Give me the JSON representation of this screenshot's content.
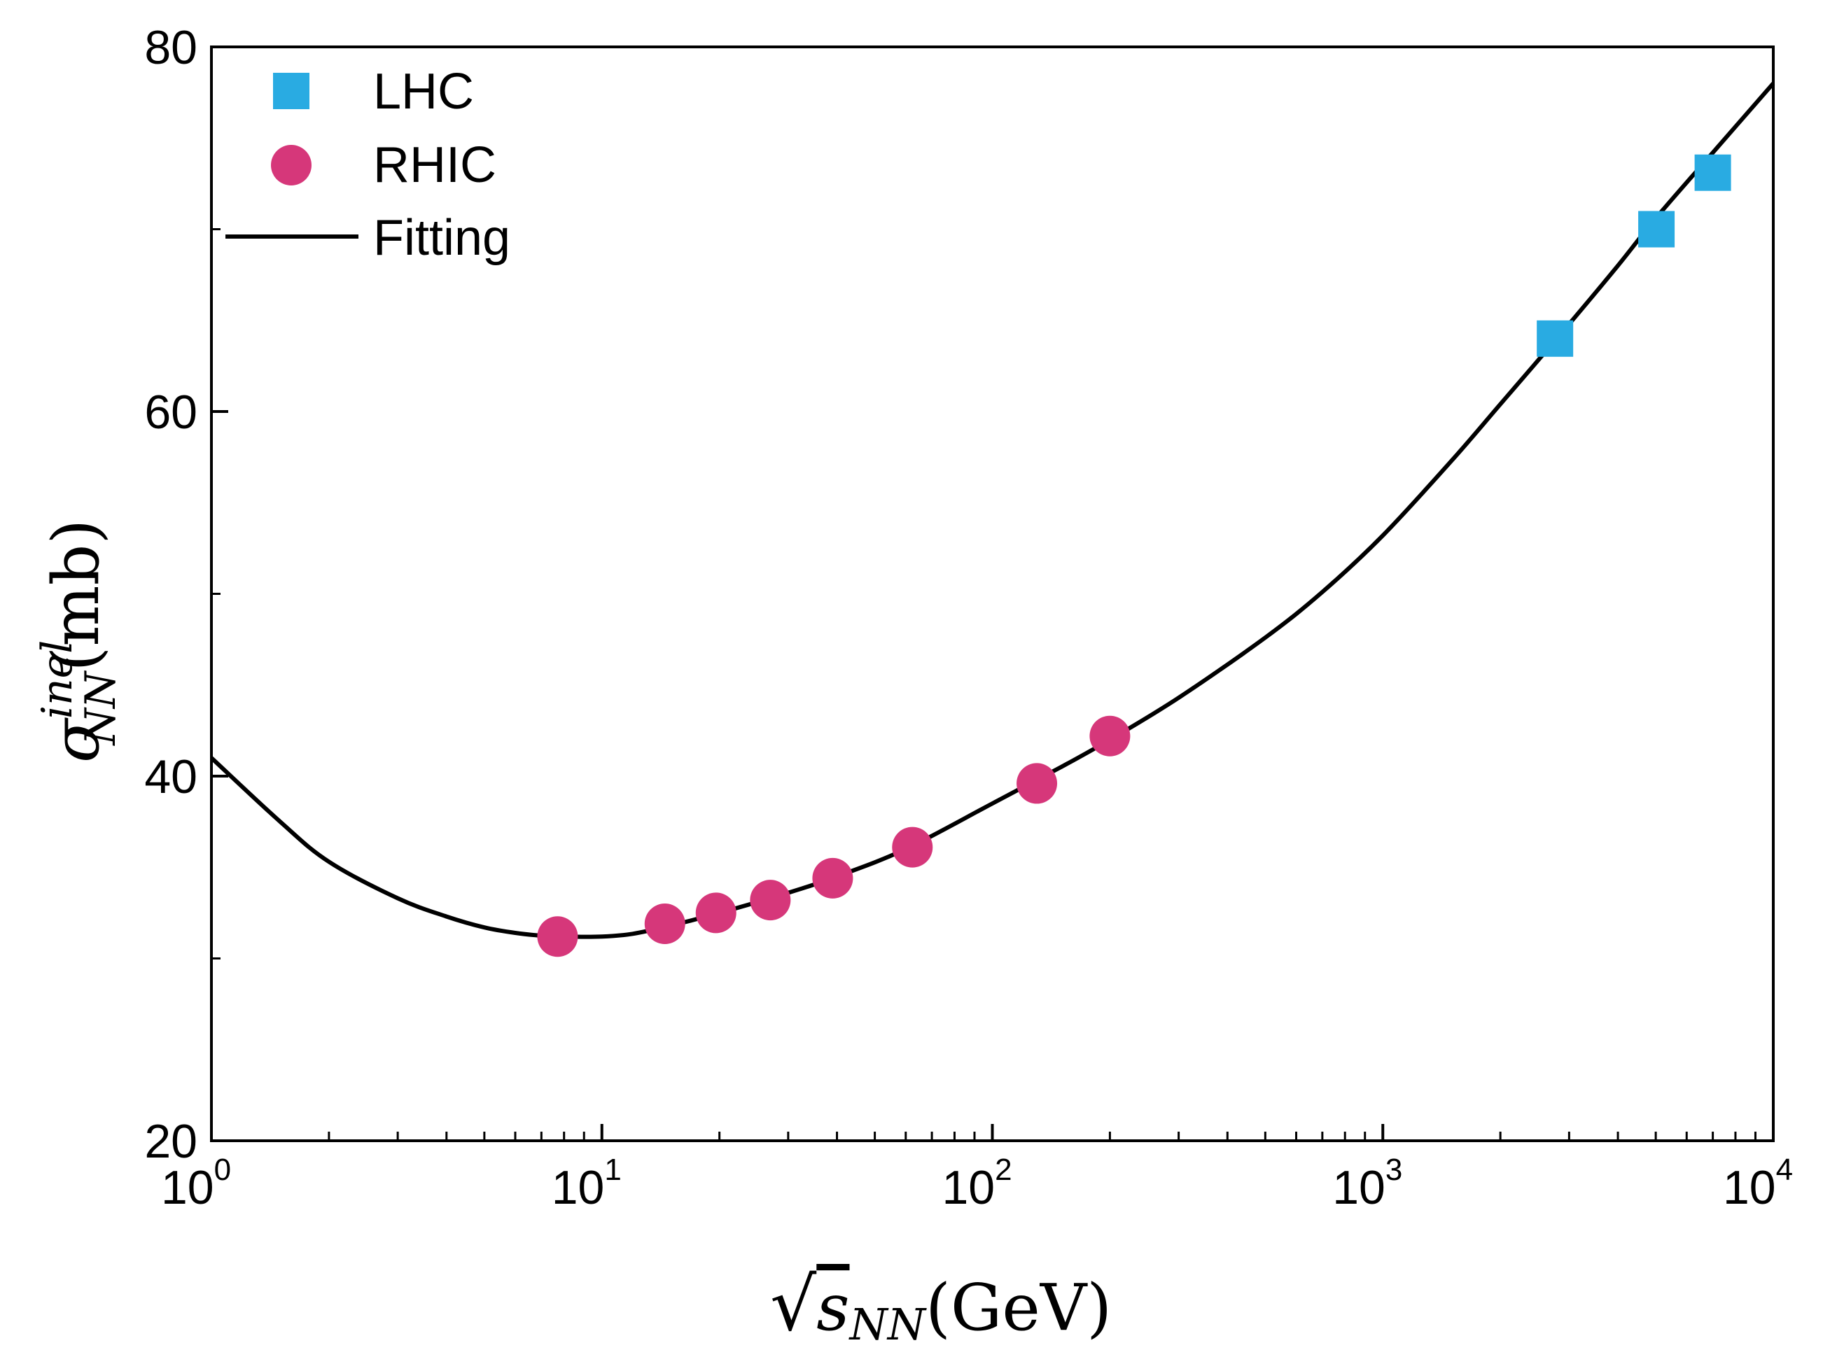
{
  "chart_data": {
    "type": "scatter",
    "xscale": "log",
    "xlim": [
      1,
      10000
    ],
    "ylim": [
      20,
      80
    ],
    "xlabel": "√s_NN (GeV)",
    "xlabel_parts": {
      "root": "√",
      "main": "s",
      "sub": "NN",
      "unit": "(GeV)"
    },
    "ylabel": "σ_NN^inel (mb)",
    "ylabel_parts": {
      "main": "σ",
      "sub": "NN",
      "sup": "inel",
      "unit": "(mb)"
    },
    "x_ticks": [
      {
        "base": "10",
        "exp": "0",
        "value": 1
      },
      {
        "base": "10",
        "exp": "1",
        "value": 10
      },
      {
        "base": "10",
        "exp": "2",
        "value": 100
      },
      {
        "base": "10",
        "exp": "3",
        "value": 1000
      },
      {
        "base": "10",
        "exp": "4",
        "value": 10000
      }
    ],
    "y_ticks": [
      {
        "label": "20",
        "value": 20
      },
      {
        "label": "40",
        "value": 40
      },
      {
        "label": "60",
        "value": 60
      },
      {
        "label": "80",
        "value": 80
      }
    ],
    "y_minor_ticks": [
      30,
      50,
      70
    ],
    "grid": false,
    "legend_position": "top-left",
    "series": [
      {
        "name": "LHC",
        "marker": "square",
        "color": "#29abe2",
        "points": [
          {
            "x": 2760,
            "y": 64.0
          },
          {
            "x": 5020,
            "y": 70.0
          },
          {
            "x": 7000,
            "y": 73.1
          }
        ]
      },
      {
        "name": "RHIC",
        "marker": "circle",
        "color": "#d6377a",
        "points": [
          {
            "x": 7.7,
            "y": 31.2
          },
          {
            "x": 14.5,
            "y": 31.9
          },
          {
            "x": 19.6,
            "y": 32.5
          },
          {
            "x": 27,
            "y": 33.2
          },
          {
            "x": 39,
            "y": 34.4
          },
          {
            "x": 62.4,
            "y": 36.1
          },
          {
            "x": 130,
            "y": 39.6
          },
          {
            "x": 200,
            "y": 42.2
          }
        ]
      },
      {
        "name": "Fitting",
        "marker": "line",
        "color": "#000000",
        "points": [
          {
            "x": 1,
            "y": 41.0
          },
          {
            "x": 1.5,
            "y": 37.5
          },
          {
            "x": 2,
            "y": 35.3
          },
          {
            "x": 3,
            "y": 33.3
          },
          {
            "x": 4,
            "y": 32.3
          },
          {
            "x": 5,
            "y": 31.7
          },
          {
            "x": 6,
            "y": 31.4
          },
          {
            "x": 7,
            "y": 31.25
          },
          {
            "x": 8,
            "y": 31.2
          },
          {
            "x": 10,
            "y": 31.2
          },
          {
            "x": 12,
            "y": 31.35
          },
          {
            "x": 15,
            "y": 31.8
          },
          {
            "x": 20,
            "y": 32.5
          },
          {
            "x": 30,
            "y": 33.6
          },
          {
            "x": 40,
            "y": 34.5
          },
          {
            "x": 60,
            "y": 36.0
          },
          {
            "x": 100,
            "y": 38.5
          },
          {
            "x": 150,
            "y": 40.5
          },
          {
            "x": 200,
            "y": 42.0
          },
          {
            "x": 300,
            "y": 44.3
          },
          {
            "x": 500,
            "y": 47.6
          },
          {
            "x": 700,
            "y": 50.1
          },
          {
            "x": 1000,
            "y": 53.2
          },
          {
            "x": 1500,
            "y": 57.3
          },
          {
            "x": 2000,
            "y": 60.4
          },
          {
            "x": 3000,
            "y": 64.8
          },
          {
            "x": 4000,
            "y": 68.0
          },
          {
            "x": 5000,
            "y": 70.6
          },
          {
            "x": 7000,
            "y": 74.2
          },
          {
            "x": 10000,
            "y": 78.0
          }
        ]
      }
    ]
  }
}
